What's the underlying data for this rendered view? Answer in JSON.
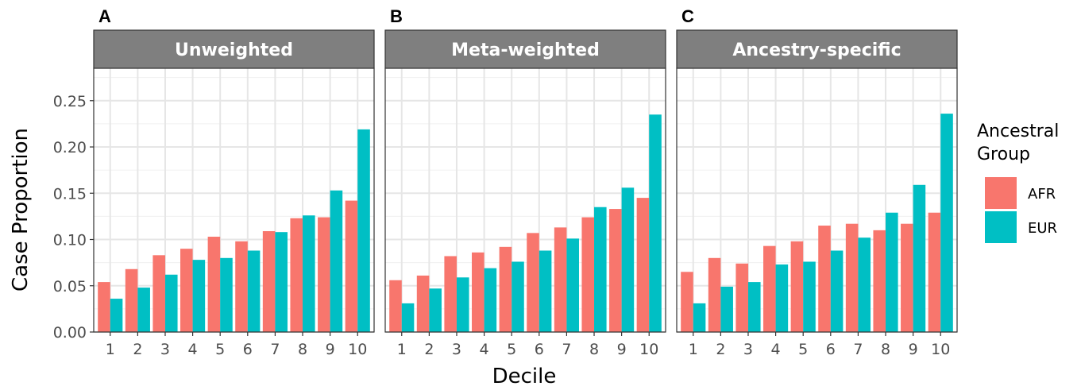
{
  "chart_data": {
    "type": "bar",
    "ylabel": "Case Proportion",
    "xlabel": "Decile",
    "ylim": [
      0,
      0.285
    ],
    "yticks": [
      0.0,
      0.05,
      0.1,
      0.15,
      0.2,
      0.25
    ],
    "ytick_labels": [
      "0.00",
      "0.05",
      "0.10",
      "0.15",
      "0.20",
      "0.25"
    ],
    "categories": [
      "1",
      "2",
      "3",
      "4",
      "5",
      "6",
      "7",
      "8",
      "9",
      "10"
    ],
    "legend": {
      "title": [
        "Ancestral",
        "Group"
      ],
      "position": "right",
      "items": [
        {
          "label": "AFR",
          "color": "#F8766D"
        },
        {
          "label": "EUR",
          "color": "#00BFC4"
        }
      ]
    },
    "grid": true,
    "panels": [
      {
        "letter": "A",
        "strip": "Unweighted",
        "series": [
          {
            "name": "AFR",
            "values": [
              0.054,
              0.068,
              0.083,
              0.09,
              0.103,
              0.098,
              0.109,
              0.123,
              0.124,
              0.142
            ]
          },
          {
            "name": "EUR",
            "values": [
              0.036,
              0.048,
              0.062,
              0.078,
              0.08,
              0.088,
              0.108,
              0.126,
              0.153,
              0.219
            ]
          }
        ]
      },
      {
        "letter": "B",
        "strip": "Meta-weighted",
        "series": [
          {
            "name": "AFR",
            "values": [
              0.056,
              0.061,
              0.082,
              0.086,
              0.092,
              0.107,
              0.113,
              0.124,
              0.133,
              0.145
            ]
          },
          {
            "name": "EUR",
            "values": [
              0.031,
              0.047,
              0.059,
              0.069,
              0.076,
              0.088,
              0.101,
              0.135,
              0.156,
              0.235
            ]
          }
        ]
      },
      {
        "letter": "C",
        "strip": "Ancestry-specific",
        "series": [
          {
            "name": "AFR",
            "values": [
              0.065,
              0.08,
              0.074,
              0.093,
              0.098,
              0.115,
              0.117,
              0.11,
              0.117,
              0.129
            ]
          },
          {
            "name": "EUR",
            "values": [
              0.031,
              0.049,
              0.054,
              0.073,
              0.076,
              0.088,
              0.102,
              0.129,
              0.159,
              0.236
            ]
          }
        ]
      }
    ]
  }
}
